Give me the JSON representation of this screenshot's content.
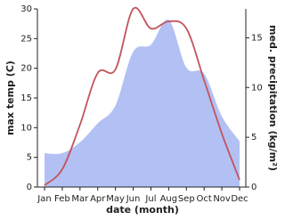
{
  "chart_data": {
    "type": "line_area",
    "categories": [
      "Jan",
      "Feb",
      "Mar",
      "Apr",
      "May",
      "Jun",
      "Jul",
      "Aug",
      "Sep",
      "Oct",
      "Nov",
      "Dec"
    ],
    "xlabel": "date (month)",
    "ylabel": "max temp (C)",
    "y2label": "med. precipitation (kg/m²)",
    "ylim": [
      0,
      30
    ],
    "yticks": [
      0,
      5,
      10,
      15,
      20,
      25,
      30
    ],
    "y2lim": [
      0,
      17.9
    ],
    "y2ticks": [
      0,
      5,
      10,
      15
    ],
    "series": [
      {
        "name": "max temp",
        "color": "#c4545a",
        "kind": "line",
        "values": [
          0.3,
          3,
          10.5,
          19.2,
          19.8,
          30,
          26.7,
          27.9,
          26.7,
          18,
          9,
          1.2
        ]
      },
      {
        "name": "med. precipitation",
        "color": "#b3c0f3",
        "kind": "area",
        "axis": "y2",
        "values": [
          3.4,
          3.4,
          4.5,
          6.4,
          8.2,
          13.6,
          14.3,
          16.8,
          12,
          11.4,
          7.1,
          4.6
        ]
      }
    ]
  }
}
